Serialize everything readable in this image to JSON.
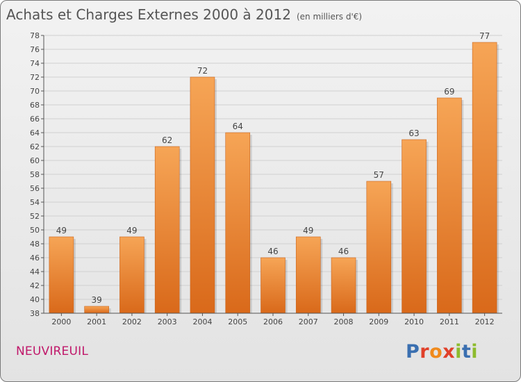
{
  "page": {
    "title": "Achats et Charges Externes 2000 à 2012",
    "unit": "(en milliers d'€)",
    "commune": "NEUVIREUIL",
    "logo": {
      "text": "Proxiti",
      "colors": [
        "#3a6fb0",
        "#e0402a",
        "#f08a1c",
        "#e0402a",
        "#8dbb2d",
        "#3a6fb0",
        "#8dbb2d"
      ]
    }
  },
  "chart_data": {
    "type": "bar",
    "title": "Achats et Charges Externes 2000 à 2012",
    "categories": [
      "2000",
      "2001",
      "2002",
      "2003",
      "2004",
      "2005",
      "2006",
      "2007",
      "2008",
      "2009",
      "2010",
      "2011",
      "2012"
    ],
    "values": [
      49,
      39,
      49,
      62,
      72,
      64,
      46,
      49,
      46,
      57,
      63,
      69,
      77
    ],
    "ylim": [
      38,
      78
    ],
    "yticks": [
      38,
      40,
      42,
      44,
      46,
      48,
      50,
      52,
      54,
      56,
      58,
      60,
      62,
      64,
      66,
      68,
      70,
      72,
      74,
      76,
      78
    ],
    "grid": true,
    "bar_color": "#e8832f"
  }
}
